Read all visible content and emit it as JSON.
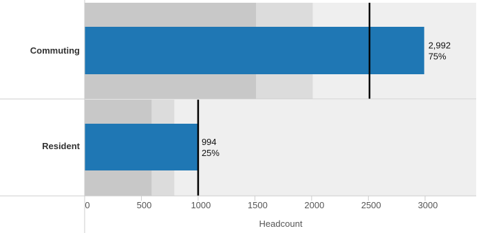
{
  "chart_data": {
    "type": "bar",
    "orientation": "horizontal",
    "variant": "bullet",
    "xlabel": "Headcount",
    "xlim": [
      0,
      3450
    ],
    "xticks": [
      0,
      500,
      1000,
      1500,
      2000,
      2500,
      3000
    ],
    "grid": false,
    "categories": [
      "Commuting",
      "Resident"
    ],
    "series": [
      {
        "values": [
          2992,
          994
        ],
        "value_labels": [
          "2,992",
          "994"
        ],
        "percent_labels": [
          "75%",
          "25%"
        ],
        "color": "#1f77b4"
      }
    ],
    "reference_lines": [
      2510,
      1000
    ],
    "qualitative_bands": [
      {
        "ranges": [
          1510,
          2010,
          3450
        ]
      },
      {
        "ranges": [
          590,
          790,
          3450
        ]
      }
    ],
    "band_colors": [
      "#c8c8c8",
      "#dcdcdc",
      "#efefef"
    ],
    "reference_line_color": "#000000"
  }
}
